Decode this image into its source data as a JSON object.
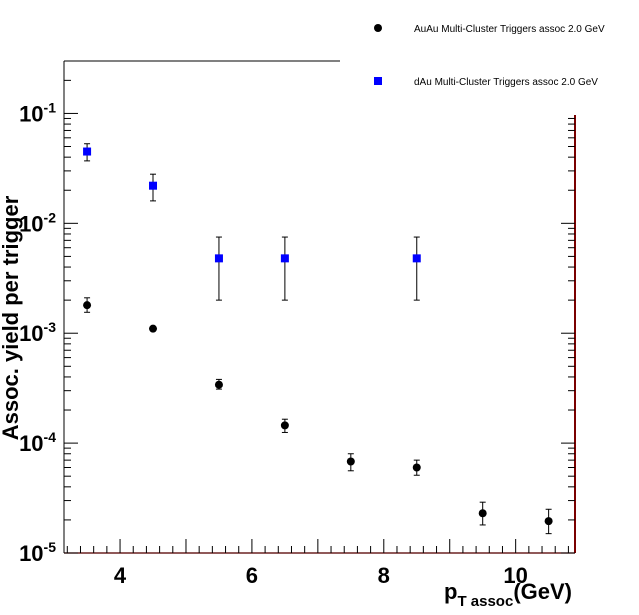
{
  "chart_data": {
    "type": "scatter",
    "xlabel": {
      "main": "p",
      "sub": "T assoc",
      "unit": "(GeV)"
    },
    "ylabel": "Assoc. yield per trigger",
    "xlim": [
      3.15,
      10.9
    ],
    "ylim": [
      1e-05,
      0.3
    ],
    "yscale": "log",
    "x_ticks": [
      4,
      6,
      8,
      10
    ],
    "y_ticks": [
      {
        "value": 1e-05,
        "base": "10",
        "exp": "-5"
      },
      {
        "value": 0.0001,
        "base": "10",
        "exp": "-4"
      },
      {
        "value": 0.001,
        "base": "10",
        "exp": "-3"
      },
      {
        "value": 0.01,
        "base": "10",
        "exp": "-2"
      },
      {
        "value": 0.1,
        "base": "10",
        "exp": "-1"
      }
    ],
    "grid": false,
    "legend_position": "top-right",
    "series": [
      {
        "name": "AuAu Multi-Cluster Triggers assoc 2.0 GeV",
        "marker": "circle",
        "color": "#000000",
        "points": [
          {
            "x": 3.5,
            "y": 0.0018,
            "ylo": 0.00155,
            "yhi": 0.0021
          },
          {
            "x": 4.5,
            "y": 0.0011,
            "ylo": 0.00106,
            "yhi": 0.00114
          },
          {
            "x": 5.5,
            "y": 0.00034,
            "ylo": 0.00031,
            "yhi": 0.00038
          },
          {
            "x": 6.5,
            "y": 0.000145,
            "ylo": 0.000125,
            "yhi": 0.000165
          },
          {
            "x": 7.5,
            "y": 6.8e-05,
            "ylo": 5.6e-05,
            "yhi": 8e-05
          },
          {
            "x": 8.5,
            "y": 6e-05,
            "ylo": 5.1e-05,
            "yhi": 7e-05
          },
          {
            "x": 9.5,
            "y": 2.3e-05,
            "ylo": 1.8e-05,
            "yhi": 2.9e-05
          },
          {
            "x": 10.5,
            "y": 1.95e-05,
            "ylo": 1.5e-05,
            "yhi": 2.5e-05
          }
        ]
      },
      {
        "name": "dAu Multi-Cluster Triggers assoc 2.0 GeV",
        "marker": "square",
        "color": "#0000ff",
        "points": [
          {
            "x": 3.5,
            "y": 0.045,
            "ylo": 0.037,
            "yhi": 0.053
          },
          {
            "x": 4.5,
            "y": 0.022,
            "ylo": 0.016,
            "yhi": 0.028
          },
          {
            "x": 5.5,
            "y": 0.0048,
            "ylo": 0.002,
            "yhi": 0.0075
          },
          {
            "x": 6.5,
            "y": 0.0048,
            "ylo": 0.002,
            "yhi": 0.0075
          },
          {
            "x": 8.5,
            "y": 0.0048,
            "ylo": 0.002,
            "yhi": 0.0075
          }
        ]
      }
    ]
  }
}
